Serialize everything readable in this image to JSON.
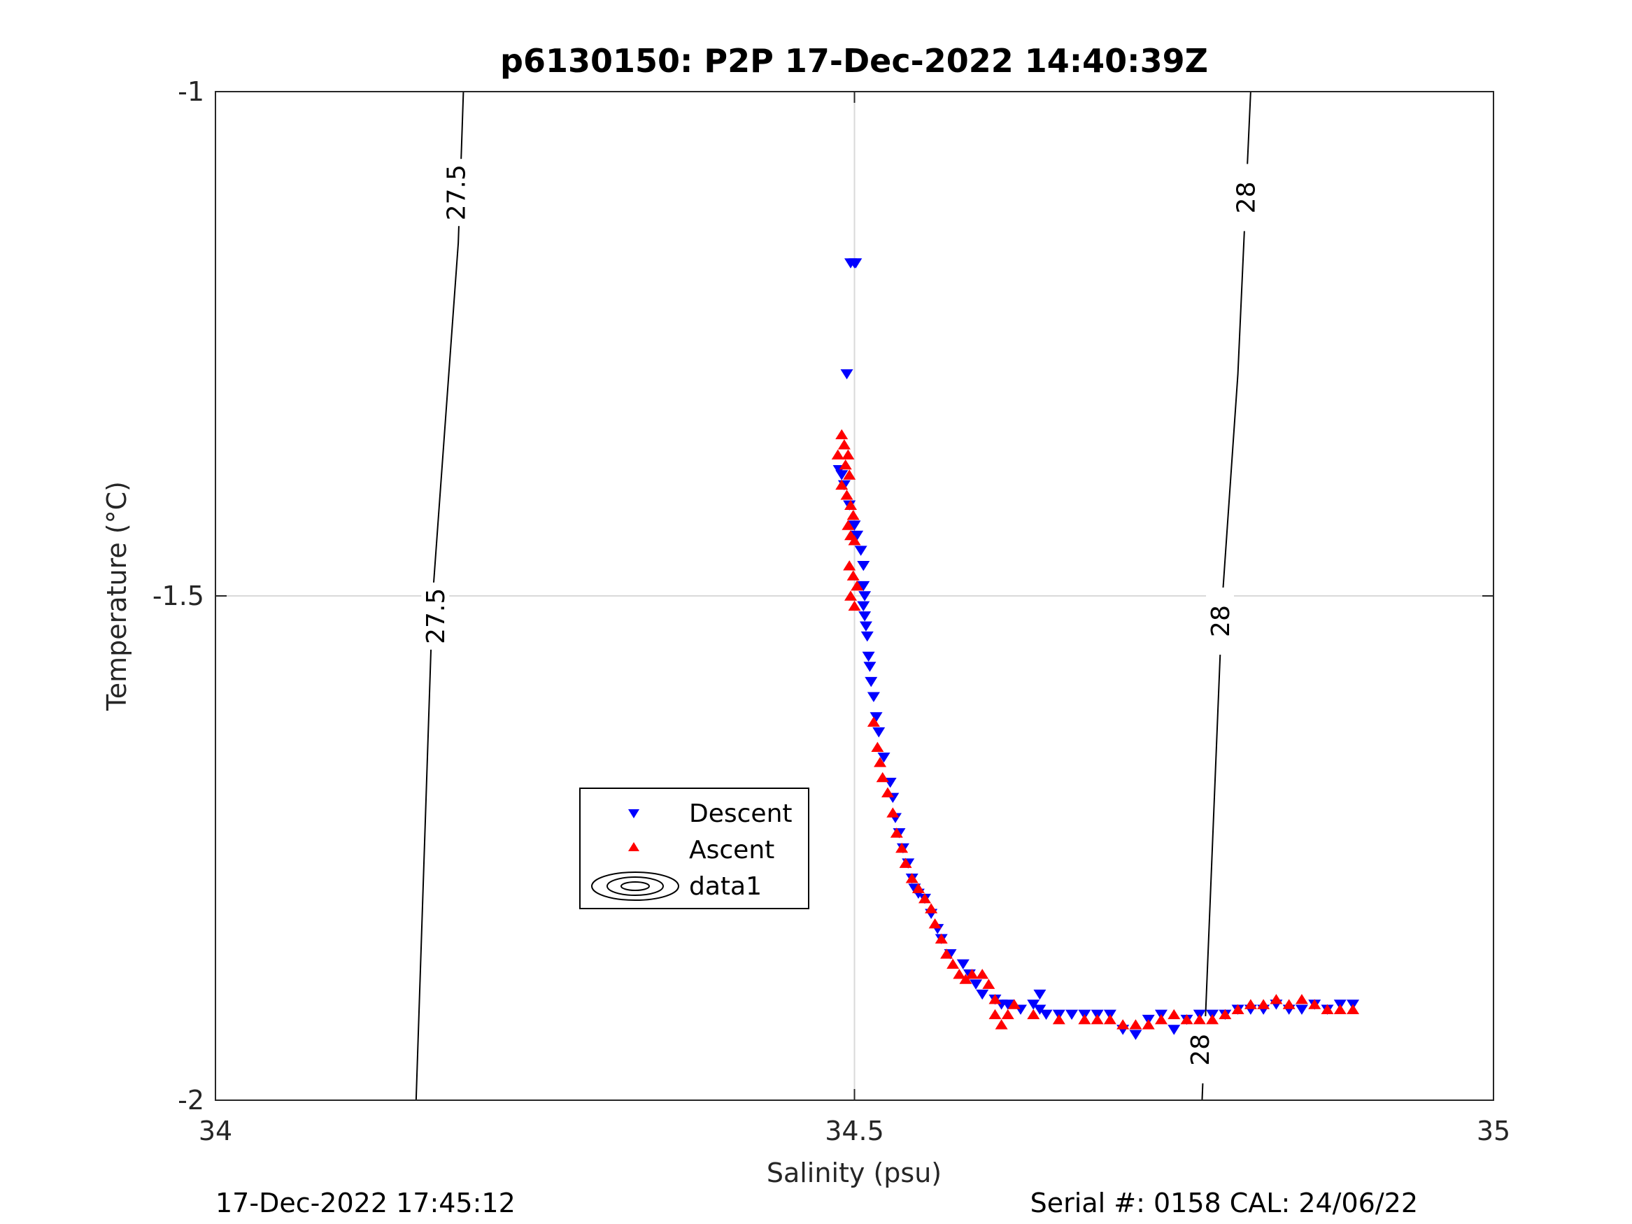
{
  "chart_data": {
    "type": "scatter",
    "title": "p6130150: P2P 17-Dec-2022 14:40:39Z",
    "xlabel": "Salinity (psu)",
    "ylabel": "Temperature (°C)",
    "xlim": [
      34,
      35
    ],
    "ylim": [
      -2,
      -1
    ],
    "xticks": [
      "34",
      "34.5",
      "35"
    ],
    "yticks": [
      "-1",
      "-1.5",
      "-2"
    ],
    "grid": true,
    "legend": {
      "placement": "center-left",
      "entries": [
        "Descent",
        "Ascent",
        "data1"
      ]
    },
    "colors": {
      "descent": "#0000ff",
      "ascent": "#ff0000",
      "contour": "#000000",
      "grid": "#d9d9d9"
    },
    "contours": [
      {
        "level": "27.5",
        "points": [
          [
            34.194,
            -1.0
          ],
          [
            34.19,
            -1.15
          ],
          [
            34.17,
            -1.5
          ],
          [
            34.157,
            -2.0
          ]
        ],
        "labels": [
          [
            34.188,
            -1.1
          ],
          [
            34.172,
            -1.52
          ]
        ]
      },
      {
        "level": "28",
        "points": [
          [
            34.81,
            -1.0
          ],
          [
            34.8,
            -1.28
          ],
          [
            34.788,
            -1.5
          ],
          [
            34.772,
            -2.0
          ]
        ],
        "labels": [
          [
            34.806,
            -1.105
          ],
          [
            34.786,
            -1.525
          ],
          [
            34.77,
            -1.95
          ]
        ]
      }
    ],
    "series": [
      {
        "name": "Descent",
        "marker": "triangle-down",
        "points": [
          [
            34.497,
            -1.17
          ],
          [
            34.501,
            -1.17
          ],
          [
            34.5,
            -1.17
          ],
          [
            34.494,
            -1.28
          ],
          [
            34.488,
            -1.375
          ],
          [
            34.49,
            -1.38
          ],
          [
            34.492,
            -1.39
          ],
          [
            34.496,
            -1.41
          ],
          [
            34.5,
            -1.43
          ],
          [
            34.502,
            -1.44
          ],
          [
            34.505,
            -1.455
          ],
          [
            34.507,
            -1.47
          ],
          [
            34.507,
            -1.49
          ],
          [
            34.508,
            -1.5
          ],
          [
            34.507,
            -1.51
          ],
          [
            34.508,
            -1.52
          ],
          [
            34.509,
            -1.53
          ],
          [
            34.51,
            -1.54
          ],
          [
            34.511,
            -1.56
          ],
          [
            34.512,
            -1.57
          ],
          [
            34.513,
            -1.585
          ],
          [
            34.515,
            -1.6
          ],
          [
            34.517,
            -1.62
          ],
          [
            34.519,
            -1.635
          ],
          [
            34.523,
            -1.66
          ],
          [
            34.528,
            -1.685
          ],
          [
            34.53,
            -1.7
          ],
          [
            34.532,
            -1.72
          ],
          [
            34.535,
            -1.735
          ],
          [
            34.538,
            -1.75
          ],
          [
            34.542,
            -1.765
          ],
          [
            34.545,
            -1.78
          ],
          [
            34.547,
            -1.79
          ],
          [
            34.55,
            -1.795
          ],
          [
            34.555,
            -1.8
          ],
          [
            34.56,
            -1.815
          ],
          [
            34.565,
            -1.83
          ],
          [
            34.568,
            -1.84
          ],
          [
            34.575,
            -1.855
          ],
          [
            34.585,
            -1.865
          ],
          [
            34.59,
            -1.875
          ],
          [
            34.595,
            -1.885
          ],
          [
            34.6,
            -1.895
          ],
          [
            34.61,
            -1.9
          ],
          [
            34.615,
            -1.905
          ],
          [
            34.62,
            -1.905
          ],
          [
            34.63,
            -1.91
          ],
          [
            34.64,
            -1.905
          ],
          [
            34.645,
            -1.895
          ],
          [
            34.645,
            -1.91
          ],
          [
            34.65,
            -1.915
          ],
          [
            34.66,
            -1.915
          ],
          [
            34.67,
            -1.915
          ],
          [
            34.68,
            -1.915
          ],
          [
            34.69,
            -1.915
          ],
          [
            34.7,
            -1.915
          ],
          [
            34.71,
            -1.93
          ],
          [
            34.72,
            -1.935
          ],
          [
            34.73,
            -1.92
          ],
          [
            34.74,
            -1.915
          ],
          [
            34.75,
            -1.93
          ],
          [
            34.76,
            -1.92
          ],
          [
            34.77,
            -1.915
          ],
          [
            34.78,
            -1.915
          ],
          [
            34.79,
            -1.915
          ],
          [
            34.8,
            -1.91
          ],
          [
            34.81,
            -1.91
          ],
          [
            34.82,
            -1.91
          ],
          [
            34.83,
            -1.905
          ],
          [
            34.84,
            -1.91
          ],
          [
            34.85,
            -1.91
          ],
          [
            34.86,
            -1.905
          ],
          [
            34.87,
            -1.91
          ],
          [
            34.88,
            -1.905
          ],
          [
            34.89,
            -1.905
          ]
        ]
      },
      {
        "name": "Ascent",
        "marker": "triangle-up",
        "points": [
          [
            34.49,
            -1.34
          ],
          [
            34.492,
            -1.35
          ],
          [
            34.495,
            -1.36
          ],
          [
            34.487,
            -1.36
          ],
          [
            34.493,
            -1.37
          ],
          [
            34.496,
            -1.38
          ],
          [
            34.49,
            -1.39
          ],
          [
            34.494,
            -1.4
          ],
          [
            34.497,
            -1.41
          ],
          [
            34.499,
            -1.42
          ],
          [
            34.495,
            -1.43
          ],
          [
            34.497,
            -1.44
          ],
          [
            34.5,
            -1.445
          ],
          [
            34.496,
            -1.47
          ],
          [
            34.499,
            -1.48
          ],
          [
            34.502,
            -1.49
          ],
          [
            34.497,
            -1.5
          ],
          [
            34.5,
            -1.51
          ],
          [
            34.515,
            -1.625
          ],
          [
            34.518,
            -1.65
          ],
          [
            34.52,
            -1.665
          ],
          [
            34.522,
            -1.68
          ],
          [
            34.526,
            -1.695
          ],
          [
            34.53,
            -1.715
          ],
          [
            34.533,
            -1.735
          ],
          [
            34.537,
            -1.75
          ],
          [
            34.54,
            -1.765
          ],
          [
            34.545,
            -1.78
          ],
          [
            34.55,
            -1.79
          ],
          [
            34.555,
            -1.8
          ],
          [
            34.56,
            -1.81
          ],
          [
            34.563,
            -1.825
          ],
          [
            34.568,
            -1.84
          ],
          [
            34.572,
            -1.855
          ],
          [
            34.577,
            -1.865
          ],
          [
            34.582,
            -1.875
          ],
          [
            34.587,
            -1.88
          ],
          [
            34.592,
            -1.875
          ],
          [
            34.6,
            -1.875
          ],
          [
            34.605,
            -1.885
          ],
          [
            34.61,
            -1.9
          ],
          [
            34.61,
            -1.915
          ],
          [
            34.615,
            -1.925
          ],
          [
            34.62,
            -1.915
          ],
          [
            34.625,
            -1.905
          ],
          [
            34.64,
            -1.915
          ],
          [
            34.66,
            -1.92
          ],
          [
            34.68,
            -1.92
          ],
          [
            34.69,
            -1.92
          ],
          [
            34.7,
            -1.92
          ],
          [
            34.71,
            -1.925
          ],
          [
            34.72,
            -1.925
          ],
          [
            34.73,
            -1.925
          ],
          [
            34.74,
            -1.92
          ],
          [
            34.75,
            -1.915
          ],
          [
            34.76,
            -1.92
          ],
          [
            34.77,
            -1.92
          ],
          [
            34.78,
            -1.92
          ],
          [
            34.79,
            -1.915
          ],
          [
            34.8,
            -1.91
          ],
          [
            34.81,
            -1.905
          ],
          [
            34.82,
            -1.905
          ],
          [
            34.83,
            -1.9
          ],
          [
            34.84,
            -1.905
          ],
          [
            34.85,
            -1.9
          ],
          [
            34.86,
            -1.905
          ],
          [
            34.87,
            -1.91
          ],
          [
            34.88,
            -1.91
          ],
          [
            34.89,
            -1.91
          ]
        ]
      }
    ]
  },
  "footer": {
    "left": "17-Dec-2022 17:45:12",
    "right": "Serial #: 0158  CAL: 24/06/22"
  }
}
